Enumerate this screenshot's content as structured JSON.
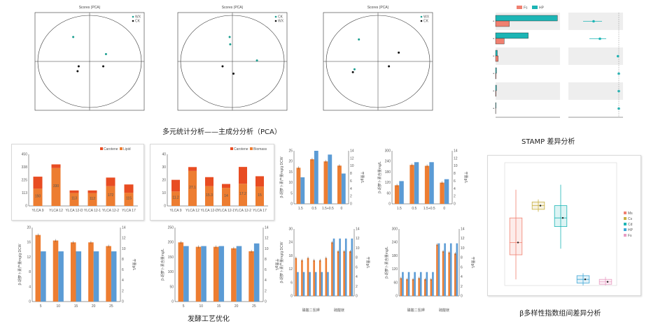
{
  "captions": {
    "pca": "多元统计分析——主成分分析（PCA）",
    "stamp": "STAMP 差异分析",
    "process": "发酵工艺优化",
    "beta": "β多样性指数组间差异分析"
  },
  "colors": {
    "orange": "#ED7D31",
    "blue": "#5B9BD5",
    "red": "#E84C22",
    "salmon": "#F08070",
    "teal": "#1CB5B5",
    "pink": "#E89CC3"
  },
  "chart_data": [
    {
      "id": "pca1",
      "type": "scatter",
      "title": "Scores (PCA)",
      "legend": [
        "WX",
        "CK"
      ],
      "points": [
        {
          "x": -0.3,
          "y": 0.5,
          "s": 1
        },
        {
          "x": 0.3,
          "y": 0.15,
          "s": 1
        },
        {
          "x": -0.2,
          "y": -0.1,
          "s": 0
        },
        {
          "x": -0.22,
          "y": -0.2,
          "s": 0
        },
        {
          "x": 0.25,
          "y": -0.1,
          "s": 0
        }
      ],
      "xlim": [
        -1,
        1
      ],
      "ylim": [
        -1,
        1
      ]
    },
    {
      "id": "pca2",
      "type": "scatter",
      "title": "Scores (PCA)",
      "legend": [
        "CK",
        "WX"
      ],
      "points": [
        {
          "x": -0.05,
          "y": 0.5,
          "s": 1
        },
        {
          "x": -0.04,
          "y": 0.35,
          "s": 1
        },
        {
          "x": 0.45,
          "y": 0.02,
          "s": 1
        },
        {
          "x": -0.18,
          "y": -0.1,
          "s": 0
        },
        {
          "x": 0.02,
          "y": -0.25,
          "s": 0
        }
      ],
      "xlim": [
        -1,
        1
      ],
      "ylim": [
        -1,
        1
      ]
    },
    {
      "id": "pca3",
      "type": "scatter",
      "title": "Scores (PCA)",
      "legend": [
        "WX",
        "CK"
      ],
      "points": [
        {
          "x": -0.35,
          "y": 0.45,
          "s": 1
        },
        {
          "x": 0.38,
          "y": 0.18,
          "s": 0
        },
        {
          "x": -0.43,
          "y": -0.16,
          "s": 1
        },
        {
          "x": -0.46,
          "y": -0.22,
          "s": 0
        },
        {
          "x": 0.2,
          "y": -0.1,
          "s": 0
        }
      ],
      "xlim": [
        -1,
        1
      ],
      "ylim": [
        -1,
        1
      ]
    },
    {
      "id": "stamp",
      "type": "bar",
      "legend": [
        "Fs",
        "HP"
      ],
      "bars": [
        {
          "a": 0.72,
          "b": 0.16
        },
        {
          "a": 0.38,
          "b": 0.1
        },
        {
          "a": 0.02,
          "b": 0.03
        },
        {
          "a": 0.01,
          "b": 0.005
        },
        {
          "a": 0.01,
          "b": 0.005
        },
        {
          "a": 0.005,
          "b": 0.002
        }
      ],
      "points": [
        {
          "v": 0.6,
          "lo": 0.4,
          "hi": 0.85
        },
        {
          "v": 0.45,
          "lo": 0.3,
          "hi": 0.7
        },
        {
          "v": 0.02,
          "lo": 0.0,
          "hi": 0.05
        },
        {
          "v": 0.0,
          "lo": -0.02,
          "hi": 0.02
        },
        {
          "v": 0.0,
          "lo": -0.02,
          "hi": 0.02
        },
        {
          "v": 0.0,
          "lo": -0.01,
          "hi": 0.01
        }
      ]
    },
    {
      "id": "stack1",
      "type": "bar",
      "legend": [
        "Carotene",
        "Lipid"
      ],
      "categories": [
        "YLCA 9",
        "YLCA 12",
        "YLCA 12-D",
        "YLCA 12-1",
        "YLCA 12-2",
        "YLCA 17"
      ],
      "bottom": [
        150,
        330,
        113,
        112,
        172,
        115
      ],
      "top": [
        105,
        32,
        22,
        23,
        75,
        72
      ],
      "ylim": [
        0,
        450
      ]
    },
    {
      "id": "stack2",
      "type": "bar",
      "legend": [
        "Carotene",
        "Biomass"
      ],
      "categories": [
        "YLCA 9",
        "YLCA 12",
        "YLCA 12-D",
        "YLCA 12-1",
        "YLCA 12-2",
        "YLCA 17"
      ],
      "bottom": [
        11.2,
        27.1,
        15.3,
        14.0,
        17.2,
        15.0
      ],
      "top": [
        9,
        3,
        7,
        3,
        13,
        8
      ],
      "ylim": [
        0,
        40
      ]
    },
    {
      "id": "p1",
      "type": "bar",
      "ylabel": "β-胡萝卜素产量mg/g DCW",
      "y2label": "干重g/L",
      "categories": [
        "1.5",
        "0.5",
        "1.5+0.5",
        "0"
      ],
      "orange": [
        17,
        21,
        20,
        18
      ],
      "blue": [
        7,
        14,
        13,
        8
      ],
      "ylim": [
        0,
        25
      ],
      "y2lim": [
        0,
        14
      ]
    },
    {
      "id": "p2",
      "type": "bar",
      "ylabel": "β-胡萝卜素含量mg/L",
      "y2label": "干重g/L",
      "categories": [
        "1.5",
        "0.5",
        "1.5+0.5",
        "0"
      ],
      "orange": [
        105,
        220,
        215,
        120
      ],
      "blue": [
        6,
        11,
        11,
        6.5
      ],
      "ylim": [
        0,
        300
      ],
      "y2lim": [
        0,
        14
      ]
    },
    {
      "id": "p3",
      "type": "bar",
      "ylabel": "β-胡萝卜素产量mg/g DCW",
      "y2label": "干重g/L",
      "categories": [
        "5",
        "10",
        "15",
        "20",
        "25"
      ],
      "orange": [
        18,
        16.5,
        16,
        16,
        15
      ],
      "blue": [
        9.5,
        9.5,
        9.5,
        9.5,
        9.5
      ],
      "ylim": [
        0,
        20
      ],
      "y2lim": [
        0,
        14
      ]
    },
    {
      "id": "p4",
      "type": "bar",
      "ylabel": "β-胡萝卜素含量mg/L",
      "y2label": "干重g/L",
      "categories": [
        "5",
        "10",
        "15",
        "20",
        "25"
      ],
      "orange": [
        200,
        185,
        185,
        180,
        170
      ],
      "blue": [
        10.5,
        10.5,
        10.5,
        10.5,
        11
      ],
      "ylim": [
        0,
        250
      ],
      "y2lim": [
        0,
        14
      ]
    },
    {
      "id": "p5",
      "type": "bar",
      "ylabel": "β-胡萝卜素产量mg/g DCW",
      "y2label": "干重g/L",
      "groups": [
        "磷酸二氢钾",
        "硫酸镁"
      ],
      "orange": [
        17,
        16,
        17,
        16,
        16,
        17,
        24,
        20,
        20,
        20
      ],
      "blue": [
        5,
        5,
        5,
        5,
        5,
        5,
        12,
        12,
        12,
        12
      ],
      "ylim": [
        0,
        30
      ],
      "y2lim": [
        0,
        14
      ]
    },
    {
      "id": "p6",
      "type": "bar",
      "ylabel": "β-胡萝卜素含量mg/L",
      "y2label": "干重g/L",
      "groups": [
        "磷酸二氢钾",
        "硫酸镁"
      ],
      "orange": [
        80,
        75,
        75,
        80,
        75,
        75,
        230,
        200,
        195,
        190
      ],
      "blue": [
        5,
        5,
        5,
        5,
        5,
        5,
        11,
        11,
        11,
        11
      ],
      "ylim": [
        0,
        300
      ],
      "y2lim": [
        0,
        14
      ]
    },
    {
      "id": "box",
      "type": "box",
      "legend": [
        "Ms",
        "Cs",
        "Cd",
        "HP",
        "Fs"
      ],
      "boxes": [
        {
          "q1": 0.25,
          "med": 0.35,
          "q3": 0.55,
          "lo": 0.05,
          "hi": 0.78,
          "c": "#F08070"
        },
        {
          "q1": 0.62,
          "med": 0.65,
          "q3": 0.68,
          "lo": 0.6,
          "hi": 0.7,
          "c": "#C8B040"
        },
        {
          "q1": 0.48,
          "med": 0.55,
          "q3": 0.65,
          "lo": 0.3,
          "hi": 0.82,
          "c": "#1CB5B5"
        },
        {
          "q1": 0.02,
          "med": 0.05,
          "q3": 0.08,
          "lo": 0.0,
          "hi": 0.1,
          "c": "#3FA7D6"
        },
        {
          "q1": 0.01,
          "med": 0.03,
          "q3": 0.05,
          "lo": 0.0,
          "hi": 0.07,
          "c": "#E89CC3"
        }
      ]
    }
  ]
}
